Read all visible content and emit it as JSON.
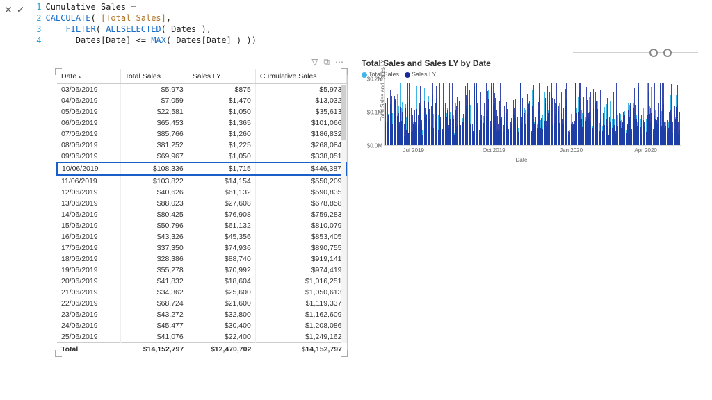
{
  "formula": {
    "lines": [
      {
        "num": "1",
        "html": "<span class='plain'>Cumulative Sales =</span>"
      },
      {
        "num": "2",
        "html": "<span class='kw-calc'>CALCULATE</span><span class='plain'>( </span><span class='measure'>[Total Sales]</span><span class='plain'>,</span>"
      },
      {
        "num": "3",
        "html": "    <span class='kw-filter'>FILTER</span><span class='plain'>( </span><span class='kw-all'>ALLSELECTED</span><span class='plain'>( Dates ),</span>"
      },
      {
        "num": "4",
        "html": "      <span class='plain'>Dates[Date] &lt;= </span><span class='kw-max'>MAX</span><span class='plain'>( Dates[Date] ) ))</span>"
      }
    ]
  },
  "table": {
    "columns": [
      "Date",
      "Total Sales",
      "Sales LY",
      "Cumulative Sales"
    ],
    "highlight_row_index": 7,
    "rows": [
      [
        "03/06/2019",
        "$5,973",
        "$875",
        "$5,973"
      ],
      [
        "04/06/2019",
        "$7,059",
        "$1,470",
        "$13,032"
      ],
      [
        "05/06/2019",
        "$22,581",
        "$1,050",
        "$35,613"
      ],
      [
        "06/06/2019",
        "$65,453",
        "$1,365",
        "$101,066"
      ],
      [
        "07/06/2019",
        "$85,766",
        "$1,260",
        "$186,832"
      ],
      [
        "08/06/2019",
        "$81,252",
        "$1,225",
        "$268,084"
      ],
      [
        "09/06/2019",
        "$69,967",
        "$1,050",
        "$338,051"
      ],
      [
        "10/06/2019",
        "$108,336",
        "$1,715",
        "$446,387"
      ],
      [
        "11/06/2019",
        "$103,822",
        "$14,154",
        "$550,209"
      ],
      [
        "12/06/2019",
        "$40,626",
        "$61,132",
        "$590,835"
      ],
      [
        "13/06/2019",
        "$88,023",
        "$27,608",
        "$678,858"
      ],
      [
        "14/06/2019",
        "$80,425",
        "$76,908",
        "$759,283"
      ],
      [
        "15/06/2019",
        "$50,796",
        "$61,132",
        "$810,079"
      ],
      [
        "16/06/2019",
        "$43,326",
        "$45,356",
        "$853,405"
      ],
      [
        "17/06/2019",
        "$37,350",
        "$74,936",
        "$890,755"
      ],
      [
        "18/06/2019",
        "$28,386",
        "$88,740",
        "$919,141"
      ],
      [
        "19/06/2019",
        "$55,278",
        "$70,992",
        "$974,419"
      ],
      [
        "20/06/2019",
        "$41,832",
        "$18,604",
        "$1,016,251"
      ],
      [
        "21/06/2019",
        "$34,362",
        "$25,600",
        "$1,050,613"
      ],
      [
        "22/06/2019",
        "$68,724",
        "$21,600",
        "$1,119,337"
      ],
      [
        "23/06/2019",
        "$43,272",
        "$32,800",
        "$1,162,609"
      ],
      [
        "24/06/2019",
        "$45,477",
        "$30,400",
        "$1,208,086"
      ],
      [
        "25/06/2019",
        "$41,076",
        "$22,400",
        "$1,249,162"
      ]
    ],
    "totals": [
      "Total",
      "$14,152,797",
      "$12,470,702",
      "$14,152,797"
    ]
  },
  "chart": {
    "title": "Total Sales and Sales LY by Date",
    "legend": [
      {
        "label": "Total Sales",
        "color": "#3fb5e8"
      },
      {
        "label": "Sales LY",
        "color": "#1a2a9c"
      }
    ],
    "y_axis_label": "Total Sales and Sales LY",
    "x_axis_label": "Date",
    "y_ticks": [
      {
        "label": "$0.2M",
        "pos": 0
      },
      {
        "label": "$0.1M",
        "pos": 50
      },
      {
        "label": "$0.0M",
        "pos": 100
      }
    ],
    "x_ticks": [
      {
        "label": "Jul 2019",
        "pos": 10
      },
      {
        "label": "Oct 2019",
        "pos": 37
      },
      {
        "label": "Jan 2020",
        "pos": 63
      },
      {
        "label": "Apr 2020",
        "pos": 88
      }
    ],
    "series_colors": {
      "ts": "#3fb5e8",
      "ly": "#1a2a9c"
    },
    "n_points": 340
  },
  "slider": {
    "handle_positions": [
      110,
      130
    ]
  }
}
